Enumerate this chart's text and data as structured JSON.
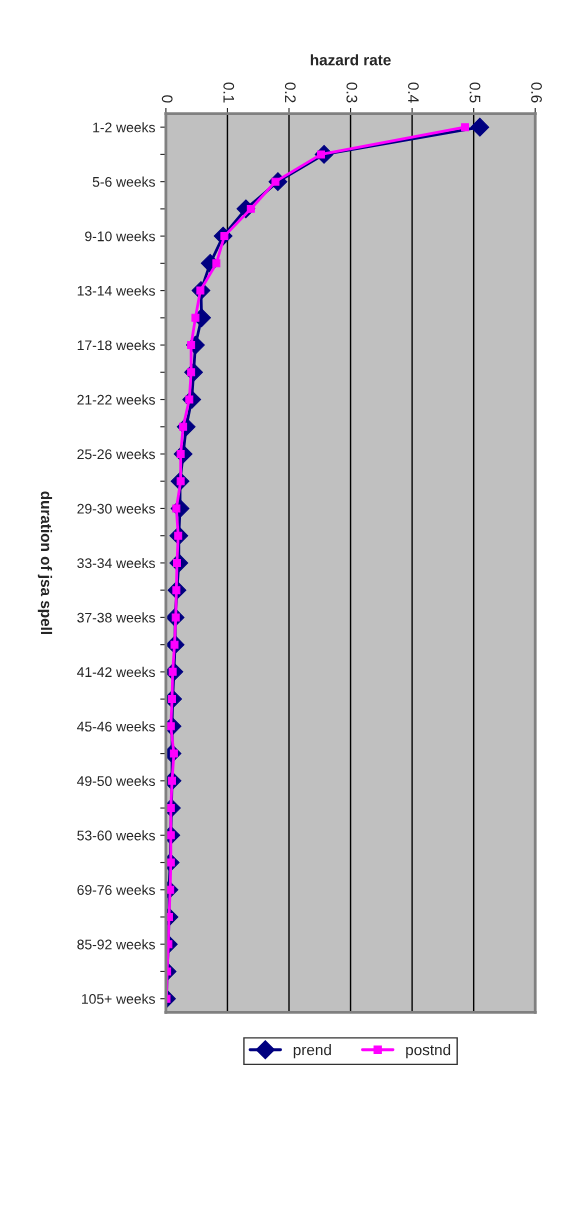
{
  "chart_data": {
    "type": "line",
    "orientation": "horizontal",
    "xlabel": "hazard rate",
    "ylabel": "duration of jsa spell",
    "categories": [
      "1-2 weeks",
      null,
      "5-6 weeks",
      null,
      "9-10 weeks",
      null,
      "13-14 weeks",
      null,
      "17-18 weeks",
      null,
      "21-22 weeks",
      null,
      "25-26 weeks",
      null,
      "29-30 weeks",
      null,
      "33-34 weeks",
      null,
      "37-38 weeks",
      null,
      "41-42 weeks",
      null,
      "45-46 weeks",
      null,
      "49-50 weeks",
      null,
      "53-60 weeks",
      null,
      "69-76 weeks",
      null,
      "85-92 weeks",
      null,
      "105+ weeks"
    ],
    "series": [
      {
        "name": "prend",
        "color": "#000080",
        "marker": "diamond",
        "values": [
          0.51,
          0.257,
          0.182,
          0.13,
          0.093,
          0.072,
          0.057,
          0.058,
          0.048,
          0.045,
          0.042,
          0.033,
          0.028,
          0.023,
          0.023,
          0.021,
          0.021,
          0.018,
          0.015,
          0.015,
          0.013,
          0.011,
          0.01,
          0.01,
          0.01,
          0.009,
          0.008,
          0.007,
          0.005,
          0.005,
          0.004,
          0.002,
          0.001
        ]
      },
      {
        "name": "postnd",
        "color": "#ff00ff",
        "marker": "square",
        "values": [
          0.486,
          0.252,
          0.178,
          0.138,
          0.095,
          0.082,
          0.056,
          0.048,
          0.041,
          0.041,
          0.038,
          0.028,
          0.024,
          0.024,
          0.017,
          0.02,
          0.018,
          0.017,
          0.016,
          0.014,
          0.011,
          0.01,
          0.008,
          0.013,
          0.01,
          0.008,
          0.008,
          0.008,
          0.007,
          0.005,
          0.004,
          0.002,
          0.001
        ]
      }
    ],
    "xlim": [
      0,
      0.6
    ],
    "xticks": [
      0,
      0.1,
      0.2,
      0.3,
      0.4,
      0.5,
      0.6
    ],
    "grid": "x",
    "legend": "bottom"
  }
}
